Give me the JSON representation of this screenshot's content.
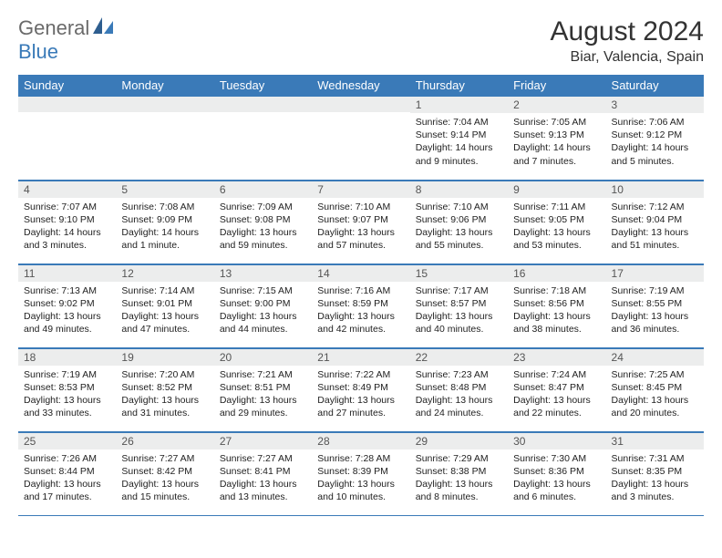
{
  "logo": {
    "general": "General",
    "blue": "Blue"
  },
  "title": "August 2024",
  "location": "Biar, Valencia, Spain",
  "weekdays": [
    "Sunday",
    "Monday",
    "Tuesday",
    "Wednesday",
    "Thursday",
    "Friday",
    "Saturday"
  ],
  "colors": {
    "header_bg": "#3a7ab8",
    "header_text": "#ffffff",
    "daynum_bg": "#eceded",
    "border": "#3a7ab8",
    "logo_gray": "#6a6a6a",
    "logo_blue": "#3a7ab8"
  },
  "weeks": [
    [
      null,
      null,
      null,
      null,
      {
        "num": "1",
        "sunrise": "Sunrise: 7:04 AM",
        "sunset": "Sunset: 9:14 PM",
        "daylight1": "Daylight: 14 hours",
        "daylight2": "and 9 minutes."
      },
      {
        "num": "2",
        "sunrise": "Sunrise: 7:05 AM",
        "sunset": "Sunset: 9:13 PM",
        "daylight1": "Daylight: 14 hours",
        "daylight2": "and 7 minutes."
      },
      {
        "num": "3",
        "sunrise": "Sunrise: 7:06 AM",
        "sunset": "Sunset: 9:12 PM",
        "daylight1": "Daylight: 14 hours",
        "daylight2": "and 5 minutes."
      }
    ],
    [
      {
        "num": "4",
        "sunrise": "Sunrise: 7:07 AM",
        "sunset": "Sunset: 9:10 PM",
        "daylight1": "Daylight: 14 hours",
        "daylight2": "and 3 minutes."
      },
      {
        "num": "5",
        "sunrise": "Sunrise: 7:08 AM",
        "sunset": "Sunset: 9:09 PM",
        "daylight1": "Daylight: 14 hours",
        "daylight2": "and 1 minute."
      },
      {
        "num": "6",
        "sunrise": "Sunrise: 7:09 AM",
        "sunset": "Sunset: 9:08 PM",
        "daylight1": "Daylight: 13 hours",
        "daylight2": "and 59 minutes."
      },
      {
        "num": "7",
        "sunrise": "Sunrise: 7:10 AM",
        "sunset": "Sunset: 9:07 PM",
        "daylight1": "Daylight: 13 hours",
        "daylight2": "and 57 minutes."
      },
      {
        "num": "8",
        "sunrise": "Sunrise: 7:10 AM",
        "sunset": "Sunset: 9:06 PM",
        "daylight1": "Daylight: 13 hours",
        "daylight2": "and 55 minutes."
      },
      {
        "num": "9",
        "sunrise": "Sunrise: 7:11 AM",
        "sunset": "Sunset: 9:05 PM",
        "daylight1": "Daylight: 13 hours",
        "daylight2": "and 53 minutes."
      },
      {
        "num": "10",
        "sunrise": "Sunrise: 7:12 AM",
        "sunset": "Sunset: 9:04 PM",
        "daylight1": "Daylight: 13 hours",
        "daylight2": "and 51 minutes."
      }
    ],
    [
      {
        "num": "11",
        "sunrise": "Sunrise: 7:13 AM",
        "sunset": "Sunset: 9:02 PM",
        "daylight1": "Daylight: 13 hours",
        "daylight2": "and 49 minutes."
      },
      {
        "num": "12",
        "sunrise": "Sunrise: 7:14 AM",
        "sunset": "Sunset: 9:01 PM",
        "daylight1": "Daylight: 13 hours",
        "daylight2": "and 47 minutes."
      },
      {
        "num": "13",
        "sunrise": "Sunrise: 7:15 AM",
        "sunset": "Sunset: 9:00 PM",
        "daylight1": "Daylight: 13 hours",
        "daylight2": "and 44 minutes."
      },
      {
        "num": "14",
        "sunrise": "Sunrise: 7:16 AM",
        "sunset": "Sunset: 8:59 PM",
        "daylight1": "Daylight: 13 hours",
        "daylight2": "and 42 minutes."
      },
      {
        "num": "15",
        "sunrise": "Sunrise: 7:17 AM",
        "sunset": "Sunset: 8:57 PM",
        "daylight1": "Daylight: 13 hours",
        "daylight2": "and 40 minutes."
      },
      {
        "num": "16",
        "sunrise": "Sunrise: 7:18 AM",
        "sunset": "Sunset: 8:56 PM",
        "daylight1": "Daylight: 13 hours",
        "daylight2": "and 38 minutes."
      },
      {
        "num": "17",
        "sunrise": "Sunrise: 7:19 AM",
        "sunset": "Sunset: 8:55 PM",
        "daylight1": "Daylight: 13 hours",
        "daylight2": "and 36 minutes."
      }
    ],
    [
      {
        "num": "18",
        "sunrise": "Sunrise: 7:19 AM",
        "sunset": "Sunset: 8:53 PM",
        "daylight1": "Daylight: 13 hours",
        "daylight2": "and 33 minutes."
      },
      {
        "num": "19",
        "sunrise": "Sunrise: 7:20 AM",
        "sunset": "Sunset: 8:52 PM",
        "daylight1": "Daylight: 13 hours",
        "daylight2": "and 31 minutes."
      },
      {
        "num": "20",
        "sunrise": "Sunrise: 7:21 AM",
        "sunset": "Sunset: 8:51 PM",
        "daylight1": "Daylight: 13 hours",
        "daylight2": "and 29 minutes."
      },
      {
        "num": "21",
        "sunrise": "Sunrise: 7:22 AM",
        "sunset": "Sunset: 8:49 PM",
        "daylight1": "Daylight: 13 hours",
        "daylight2": "and 27 minutes."
      },
      {
        "num": "22",
        "sunrise": "Sunrise: 7:23 AM",
        "sunset": "Sunset: 8:48 PM",
        "daylight1": "Daylight: 13 hours",
        "daylight2": "and 24 minutes."
      },
      {
        "num": "23",
        "sunrise": "Sunrise: 7:24 AM",
        "sunset": "Sunset: 8:47 PM",
        "daylight1": "Daylight: 13 hours",
        "daylight2": "and 22 minutes."
      },
      {
        "num": "24",
        "sunrise": "Sunrise: 7:25 AM",
        "sunset": "Sunset: 8:45 PM",
        "daylight1": "Daylight: 13 hours",
        "daylight2": "and 20 minutes."
      }
    ],
    [
      {
        "num": "25",
        "sunrise": "Sunrise: 7:26 AM",
        "sunset": "Sunset: 8:44 PM",
        "daylight1": "Daylight: 13 hours",
        "daylight2": "and 17 minutes."
      },
      {
        "num": "26",
        "sunrise": "Sunrise: 7:27 AM",
        "sunset": "Sunset: 8:42 PM",
        "daylight1": "Daylight: 13 hours",
        "daylight2": "and 15 minutes."
      },
      {
        "num": "27",
        "sunrise": "Sunrise: 7:27 AM",
        "sunset": "Sunset: 8:41 PM",
        "daylight1": "Daylight: 13 hours",
        "daylight2": "and 13 minutes."
      },
      {
        "num": "28",
        "sunrise": "Sunrise: 7:28 AM",
        "sunset": "Sunset: 8:39 PM",
        "daylight1": "Daylight: 13 hours",
        "daylight2": "and 10 minutes."
      },
      {
        "num": "29",
        "sunrise": "Sunrise: 7:29 AM",
        "sunset": "Sunset: 8:38 PM",
        "daylight1": "Daylight: 13 hours",
        "daylight2": "and 8 minutes."
      },
      {
        "num": "30",
        "sunrise": "Sunrise: 7:30 AM",
        "sunset": "Sunset: 8:36 PM",
        "daylight1": "Daylight: 13 hours",
        "daylight2": "and 6 minutes."
      },
      {
        "num": "31",
        "sunrise": "Sunrise: 7:31 AM",
        "sunset": "Sunset: 8:35 PM",
        "daylight1": "Daylight: 13 hours",
        "daylight2": "and 3 minutes."
      }
    ]
  ]
}
